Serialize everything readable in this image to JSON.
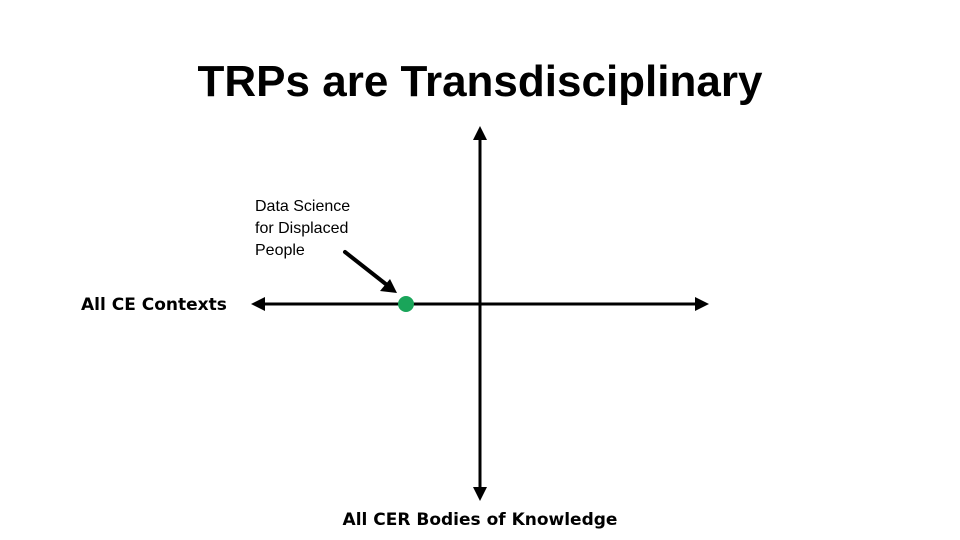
{
  "slide": {
    "title": "TRPs are Transdisciplinary"
  },
  "diagram": {
    "horizontal_axis_label": "All CE Contexts",
    "vertical_axis_label": "All CER Bodies of Knowledge",
    "callout_lines": [
      "Data Science",
      "for Displaced",
      "People"
    ],
    "colors": {
      "axes": "#000000",
      "band": "#f08232",
      "point": "#1aa55a"
    }
  }
}
